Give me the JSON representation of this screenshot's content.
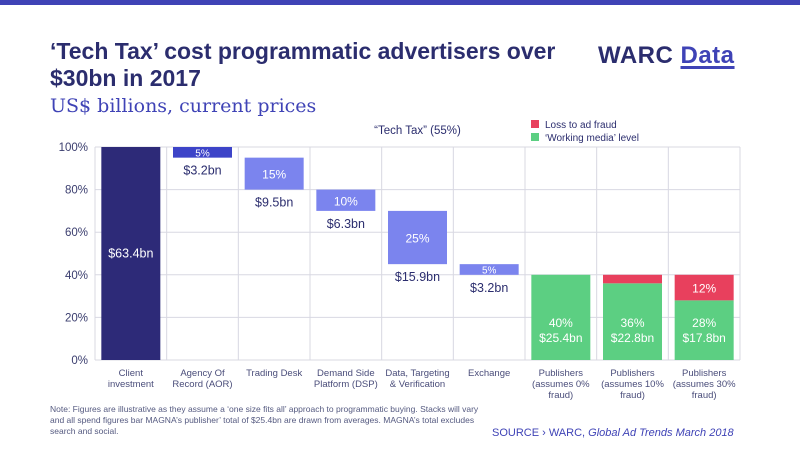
{
  "header": {
    "title": "‘Tech Tax’ cost programmatic advertisers over $30bn in 2017",
    "subtitle": "US$ billions, current prices",
    "logo_main": "WARC",
    "logo_sub": "Data"
  },
  "footer": {
    "note": "Note: Figures are illustrative as they assume a ‘one size fits all’ approach to programmatic buying. Stacks will vary and all spend figures bar MAGNA’s publisher’ total of $25.4bn are drawn from averages. MAGNA’s total excludes search and social.",
    "source_prefix": "SOURCE › WARC, ",
    "source_title": "Global Ad Trends March 2018"
  },
  "colors": {
    "dark": "#2d2a78",
    "tax": "#7b84ee",
    "tax_small": "#3d44c8",
    "working": "#5ccf82",
    "fraud": "#e8405d",
    "text": "#2b2d6e",
    "grid": "#d8d8e2"
  },
  "chart_data": {
    "type": "bar",
    "annotation": "“Tech Tax” (55%)",
    "ylim": [
      0,
      100
    ],
    "y_ticks": [
      "0%",
      "20%",
      "40%",
      "60%",
      "80%",
      "100%"
    ],
    "legend": [
      {
        "name": "Loss to ad fraud",
        "color": "#e8405d"
      },
      {
        "name": "‘Working media’ level",
        "color": "#5ccf82"
      }
    ],
    "legend_position": "top-right",
    "bars": [
      {
        "category": [
          "Client",
          "investment"
        ],
        "start": 0,
        "end": 100,
        "kind": "total",
        "label": "$63.4bn",
        "pct": ""
      },
      {
        "category": [
          "Agency Of",
          "Record (AOR)"
        ],
        "start": 95,
        "end": 100,
        "kind": "tax_small",
        "label": "$3.2bn",
        "pct": "5%"
      },
      {
        "category": [
          "Trading Desk"
        ],
        "start": 80,
        "end": 95,
        "kind": "tax",
        "label": "$9.5bn",
        "pct": "15%"
      },
      {
        "category": [
          "Demand Side",
          "Platform (DSP)"
        ],
        "start": 70,
        "end": 80,
        "kind": "tax",
        "label": "$6.3bn",
        "pct": "10%"
      },
      {
        "category": [
          "Data, Targeting",
          "& Verification"
        ],
        "start": 45,
        "end": 70,
        "kind": "tax",
        "label": "$15.9bn",
        "pct": "25%"
      },
      {
        "category": [
          "Exchange"
        ],
        "start": 40,
        "end": 45,
        "kind": "tax",
        "label": "$3.2bn",
        "pct": "5%"
      },
      {
        "category": [
          "Publishers",
          "(assumes 0%",
          "fraud)"
        ],
        "start": 0,
        "end": 40,
        "kind": "working",
        "label": "$25.4bn",
        "pct": "40%",
        "fraud": 0
      },
      {
        "category": [
          "Publishers",
          "(assumes 10%",
          "fraud)"
        ],
        "start": 0,
        "end": 36,
        "kind": "working",
        "label": "$22.8bn",
        "pct": "36%",
        "fraud": 4
      },
      {
        "category": [
          "Publishers",
          "(assumes 30%",
          "fraud)"
        ],
        "start": 0,
        "end": 28,
        "kind": "working",
        "label": "$17.8bn",
        "pct": "28%",
        "fraud": 12,
        "fraud_label": "12%"
      }
    ]
  }
}
